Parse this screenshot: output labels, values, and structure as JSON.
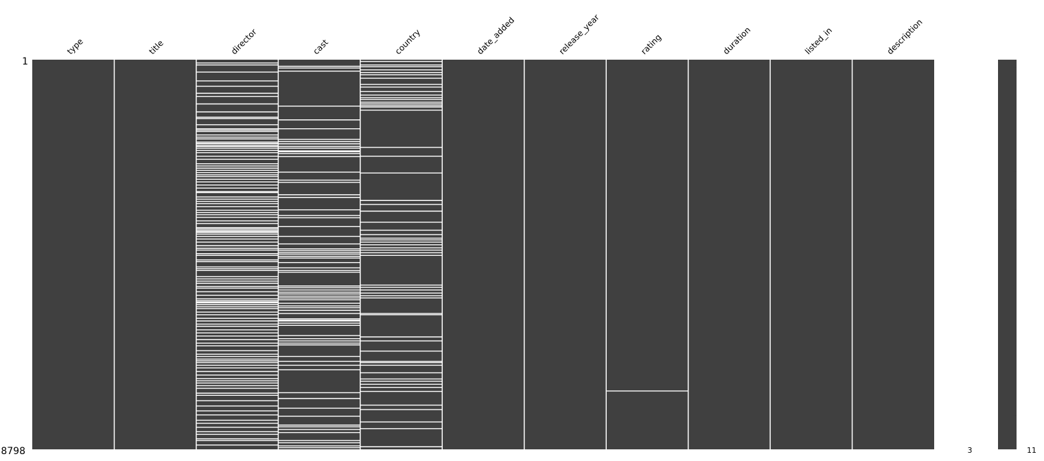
{
  "chart_data": {
    "type": "heatmap",
    "title": "",
    "columns": [
      "type",
      "title",
      "director",
      "cast",
      "country",
      "date_added",
      "release_year",
      "rating",
      "duration",
      "listed_in",
      "description"
    ],
    "row_count": 8798,
    "row_labels": [
      "1",
      "8798"
    ],
    "colors": {
      "present": "#404040",
      "missing": "#ffffff",
      "separator": "#ffffff"
    },
    "missing_rows": {
      "type": [],
      "title": [],
      "director": [
        75,
        120,
        280,
        480,
        600,
        760,
        830,
        1000,
        1180,
        1300,
        1330,
        1470,
        1560,
        1590,
        1620,
        1700,
        1750,
        1790,
        1860,
        1890,
        1900,
        1940,
        1960,
        2000,
        2050,
        2100,
        2180,
        2250,
        2350,
        2400,
        2450,
        2500,
        2550,
        2600,
        2640,
        2700,
        2760,
        2830,
        2900,
        2980,
        3000,
        3100,
        3150,
        3200,
        3250,
        3320,
        3400,
        3450,
        3500,
        3560,
        3640,
        3700,
        3790,
        3820,
        3850,
        3880,
        3900,
        3940,
        3990,
        4050,
        4120,
        4200,
        4260,
        4300,
        4380,
        4420,
        4520,
        4560,
        4680,
        4720,
        4760,
        4900,
        4950,
        5000,
        5050,
        5120,
        5160,
        5240,
        5320,
        5400,
        5440,
        5470,
        5490,
        5530,
        5580,
        5620,
        5700,
        5760,
        5840,
        5900,
        5970,
        6020,
        6100,
        6170,
        6240,
        6320,
        6400,
        6460,
        6570,
        6650,
        6700,
        6760,
        6800,
        6840,
        6900,
        6960,
        7040,
        7120,
        7200,
        7250,
        7300,
        7360,
        7420,
        7530,
        7580,
        7700,
        7820,
        7930,
        8020,
        8140,
        8210,
        8300,
        8400,
        8460,
        8560,
        8600,
        8700
      ],
      "cast": [
        150,
        190,
        260,
        1050,
        1360,
        1560,
        1800,
        1850,
        1900,
        1960,
        2000,
        2060,
        2080,
        2120,
        2190,
        2540,
        2720,
        2770,
        3050,
        3110,
        3390,
        3520,
        3570,
        3770,
        3990,
        4160,
        4270,
        4310,
        4350,
        4390,
        4440,
        4480,
        4580,
        4700,
        4760,
        4800,
        5110,
        5150,
        5200,
        5250,
        5290,
        5340,
        5380,
        5420,
        5500,
        5560,
        5600,
        5660,
        5730,
        5850,
        5880,
        5900,
        5950,
        6000,
        6230,
        6300,
        6350,
        6400,
        6440,
        6700,
        6810,
        6900,
        7000,
        7520,
        7650,
        7870,
        8050,
        8250,
        8290,
        8350,
        8420,
        8600,
        8650,
        8720,
        8760
      ],
      "country": [
        40,
        120,
        160,
        230,
        290,
        340,
        420,
        560,
        620,
        720,
        800,
        860,
        900,
        960,
        1000,
        1040,
        1070,
        1140,
        1980,
        2180,
        2560,
        3180,
        3270,
        3420,
        3670,
        3850,
        3950,
        4030,
        4070,
        4120,
        4180,
        4250,
        4300,
        4360,
        4420,
        5090,
        5140,
        5200,
        5270,
        5330,
        5380,
        5730,
        5760,
        6260,
        6350,
        6580,
        6810,
        6840,
        6900,
        7070,
        7210,
        7260,
        7330,
        7400,
        7490,
        7800,
        7900,
        8180,
        8330,
        8740
      ],
      "date_added": [],
      "release_year": [],
      "rating": [
        7480
      ],
      "duration": [],
      "listed_in": [],
      "description": []
    },
    "sparkline": {
      "min_label": "3",
      "max_label": "11",
      "min_value": 3,
      "max_value": 11
    }
  }
}
